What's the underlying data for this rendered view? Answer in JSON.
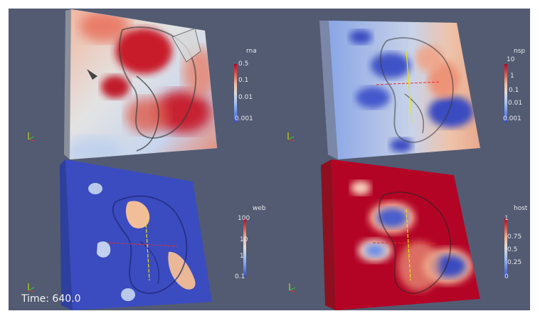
{
  "views": [
    {
      "id": "rna",
      "colorbar": {
        "title": "rna",
        "ticks": [
          "0.5",
          "0.1",
          "0.01",
          "0.001"
        ],
        "colors": [
          "#b40426",
          "#dd5a4b",
          "#f5b89c",
          "#dcdcdc",
          "#a5c1f2",
          "#6a8be8",
          "#3b4cc0"
        ]
      }
    },
    {
      "id": "nsp",
      "colorbar": {
        "title": "nsp",
        "ticks": [
          "10",
          "1",
          "0.1",
          "0.01",
          "0.001"
        ],
        "colors": [
          "#b40426",
          "#dd5a4b",
          "#f5b89c",
          "#dcdcdc",
          "#a5c1f2",
          "#6a8be8",
          "#3b4cc0"
        ]
      }
    },
    {
      "id": "web",
      "colorbar": {
        "title": "web",
        "ticks": [
          "100",
          "10",
          "1",
          "0.1"
        ],
        "colors": [
          "#b40426",
          "#dd5a4b",
          "#f5b89c",
          "#dcdcdc",
          "#a5c1f2",
          "#6a8be8",
          "#3b4cc0"
        ]
      }
    },
    {
      "id": "host",
      "colorbar": {
        "title": "host",
        "ticks": [
          "1",
          "0.75",
          "0.5",
          "0.25",
          "0"
        ],
        "colors": [
          "#b40426",
          "#dd5a4b",
          "#f5b89c",
          "#dcdcdc",
          "#a5c1f2",
          "#6a8be8",
          "#3b4cc0"
        ]
      }
    }
  ],
  "time_label": "Time: 640.0",
  "colors": {
    "background": "#525b72",
    "frame": "#ffffff"
  }
}
